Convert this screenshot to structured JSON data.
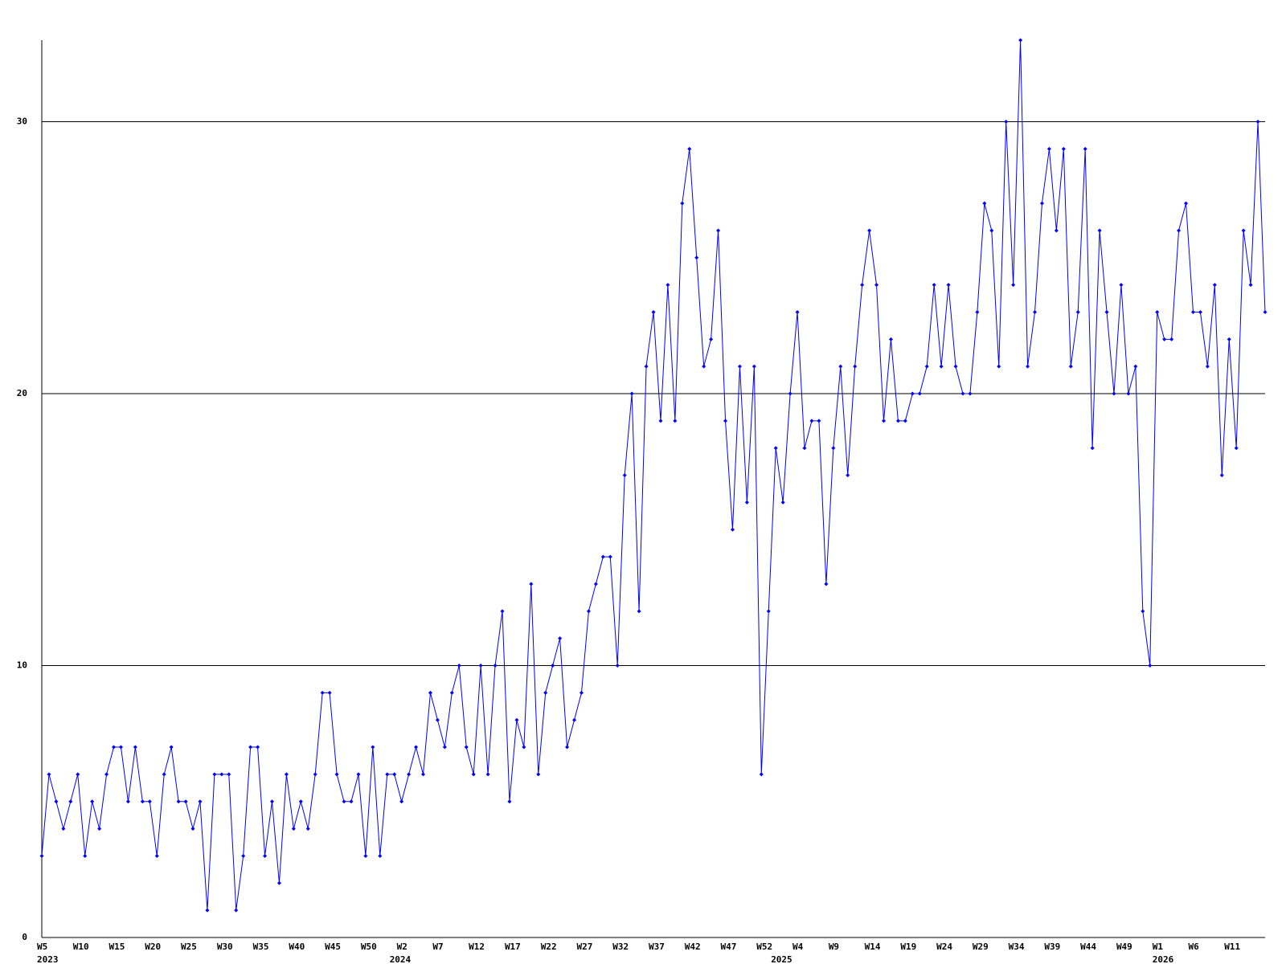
{
  "chart_data": {
    "type": "line",
    "categories": [
      "W5",
      null,
      null,
      null,
      null,
      "W10",
      null,
      null,
      null,
      null,
      "W15",
      null,
      null,
      null,
      null,
      "W20",
      null,
      null,
      null,
      null,
      "W25",
      null,
      null,
      null,
      null,
      "W30",
      null,
      null,
      null,
      null,
      "W35",
      null,
      null,
      null,
      null,
      "W40",
      null,
      null,
      null,
      null,
      "W45",
      null,
      null,
      null,
      null,
      "W50",
      null,
      null,
      null,
      null,
      "W2",
      null,
      null,
      null,
      null,
      "W7",
      null,
      null,
      null,
      null,
      "W12",
      null,
      null,
      null,
      null,
      "W17",
      null,
      null,
      null,
      null,
      "W22",
      null,
      null,
      null,
      null,
      "W27",
      null,
      null,
      null,
      null,
      "W32",
      null,
      null,
      null,
      null,
      "W37",
      null,
      null,
      null,
      null,
      "W42",
      null,
      null,
      null,
      null,
      "W47",
      null,
      null,
      null,
      null,
      "W52",
      null,
      null,
      null,
      null,
      "W4",
      null,
      null,
      null,
      null,
      "W9",
      null,
      null,
      null,
      null,
      "W14",
      null,
      null,
      null,
      null,
      "W19",
      null,
      null,
      null,
      null,
      "W24",
      null,
      null,
      null,
      null,
      "W29",
      null,
      null,
      null,
      null,
      "W34",
      null,
      null,
      null,
      null,
      "W39",
      null,
      null,
      null,
      null,
      "W44",
      null,
      null,
      null,
      null,
      "W49",
      null,
      null,
      null,
      null,
      "W1",
      null,
      null,
      null,
      null,
      "W6",
      null,
      null,
      null,
      null,
      "W11",
      null,
      null,
      null,
      null,
      null
    ],
    "year_labels": [
      "2023",
      null,
      null,
      null,
      null,
      null,
      null,
      null,
      null,
      null,
      null,
      null,
      null,
      null,
      null,
      null,
      null,
      null,
      null,
      null,
      null,
      null,
      null,
      null,
      null,
      null,
      null,
      null,
      null,
      null,
      null,
      null,
      null,
      null,
      null,
      null,
      null,
      null,
      null,
      null,
      null,
      null,
      null,
      null,
      null,
      null,
      null,
      null,
      null,
      "2024",
      null,
      null,
      null,
      null,
      null,
      null,
      null,
      null,
      null,
      null,
      null,
      null,
      null,
      null,
      null,
      null,
      null,
      null,
      null,
      null,
      null,
      null,
      null,
      null,
      null,
      null,
      null,
      null,
      null,
      null,
      null,
      null,
      null,
      null,
      null,
      null,
      null,
      null,
      null,
      null,
      null,
      null,
      null,
      null,
      null,
      null,
      null,
      null,
      null,
      null,
      null,
      null,
      "2025",
      null,
      null,
      null,
      null,
      null,
      null,
      null,
      null,
      null,
      null,
      null,
      null,
      null,
      null,
      null,
      null,
      null,
      null,
      null,
      null,
      null,
      null,
      null,
      null,
      null,
      null,
      null,
      null,
      null,
      null,
      null,
      null,
      null,
      null,
      null,
      null,
      null,
      null,
      null,
      null,
      null,
      null,
      null,
      null,
      null,
      null,
      null,
      null,
      null,
      null,
      null,
      null,
      "2026",
      null,
      null,
      null,
      null,
      null,
      null,
      null,
      null,
      null,
      null,
      null,
      null,
      null,
      null,
      null
    ],
    "values": [
      3,
      6,
      5,
      4,
      5,
      6,
      3,
      5,
      4,
      6,
      7,
      7,
      5,
      7,
      5,
      5,
      3,
      6,
      7,
      5,
      5,
      4,
      5,
      1,
      6,
      6,
      6,
      1,
      3,
      7,
      7,
      3,
      5,
      2,
      6,
      4,
      5,
      4,
      6,
      9,
      9,
      6,
      5,
      5,
      6,
      3,
      7,
      3,
      6,
      6,
      5,
      6,
      7,
      6,
      9,
      8,
      7,
      9,
      10,
      7,
      6,
      10,
      6,
      10,
      12,
      5,
      8,
      7,
      13,
      6,
      9,
      10,
      11,
      7,
      8,
      9,
      12,
      13,
      14,
      14,
      10,
      17,
      20,
      12,
      21,
      23,
      19,
      24,
      19,
      27,
      29,
      25,
      21,
      22,
      26,
      19,
      15,
      21,
      16,
      21,
      6,
      12,
      18,
      16,
      20,
      23,
      18,
      19,
      19,
      13,
      18,
      21,
      17,
      21,
      24,
      26,
      24,
      19,
      22,
      19,
      19,
      20,
      20,
      21,
      24,
      21,
      24,
      21,
      20,
      20,
      23,
      27,
      26,
      21,
      30,
      24,
      33,
      21,
      23,
      27,
      29,
      26,
      29,
      21,
      23,
      29,
      18,
      26,
      23,
      20,
      24,
      20,
      21,
      12,
      10,
      23,
      22,
      22,
      26,
      27,
      23,
      23,
      21,
      24,
      17,
      22,
      18,
      26,
      24,
      30,
      23
    ],
    "color": "#0000ff",
    "ylim": [
      0,
      33
    ],
    "yticks": [
      0,
      10,
      20,
      30
    ],
    "grid": true
  }
}
